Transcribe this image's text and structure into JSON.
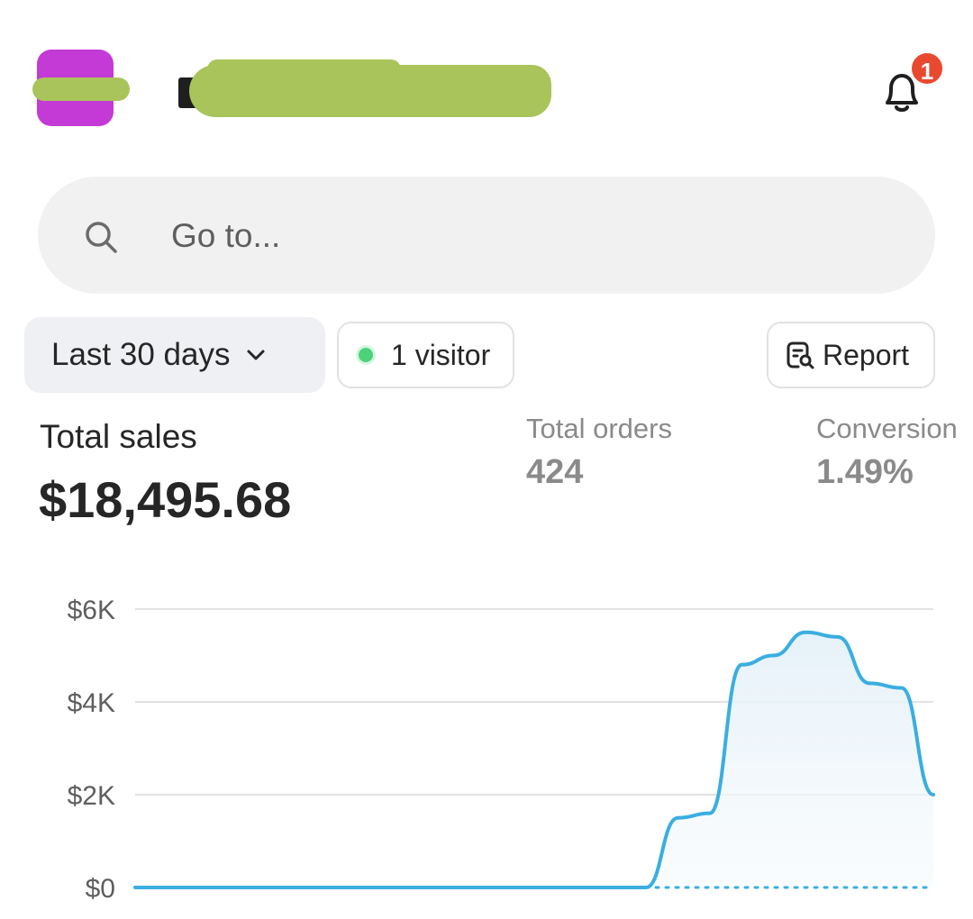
{
  "header": {
    "notification_count": "1"
  },
  "search": {
    "placeholder": "Go to..."
  },
  "filters": {
    "date_range": "Last 30 days",
    "live_visitors": "1 visitor",
    "report_label": "Report"
  },
  "metrics": {
    "total_sales_label": "Total sales",
    "total_sales_value": "$18,495.68",
    "total_orders_label": "Total orders",
    "total_orders_value": "424",
    "conversion_label": "Conversion",
    "conversion_value": "1.49%"
  },
  "colors": {
    "accent_line": "#3aaee0",
    "logo": "#c43ad6",
    "badge": "#e8492f",
    "live_dot": "#4cd37a"
  },
  "chart_data": {
    "type": "area",
    "title": "",
    "xlabel": "",
    "ylabel": "",
    "ylim": [
      0,
      6000
    ],
    "y_ticks": [
      "$0",
      "$2K",
      "$4K",
      "$6K"
    ],
    "y_tick_values": [
      0,
      2000,
      4000,
      6000
    ],
    "grid": true,
    "x": [
      1,
      2,
      3,
      4,
      5,
      6,
      7,
      8,
      9,
      10,
      11,
      12,
      13,
      14,
      15,
      16,
      17,
      18,
      19,
      20,
      21,
      22,
      23,
      24,
      25,
      26
    ],
    "series": [
      {
        "values": [
          0,
          0,
          0,
          0,
          0,
          0,
          0,
          0,
          0,
          0,
          0,
          0,
          0,
          0,
          0,
          0,
          0,
          1500,
          1600,
          4800,
          5000,
          5500,
          5400,
          4400,
          4300,
          2000
        ]
      }
    ],
    "dotted_baseline_from_x": 18
  }
}
